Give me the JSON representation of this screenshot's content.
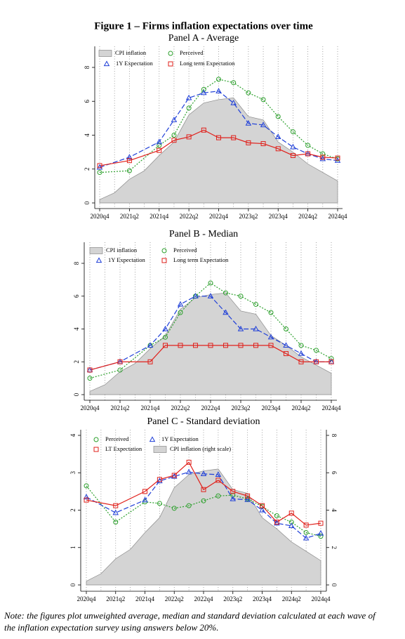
{
  "title": "Figure 1 – Firms inflation expectations over time",
  "chart_data": [
    {
      "type": "line",
      "title": "Panel A - Average",
      "xlim": [
        2020.75,
        2024.75
      ],
      "xticks": [
        {
          "value": 2020.75,
          "label": "2020q4"
        },
        {
          "value": 2021.25,
          "label": "2021q2"
        },
        {
          "value": 2021.75,
          "label": "2021q4"
        },
        {
          "value": 2022.25,
          "label": "2022q2"
        },
        {
          "value": 2022.75,
          "label": "2022q4"
        },
        {
          "value": 2023.25,
          "label": "2023q2"
        },
        {
          "value": 2023.75,
          "label": "2023q4"
        },
        {
          "value": 2024.25,
          "label": "2024q2"
        },
        {
          "value": 2024.75,
          "label": "2024q4"
        }
      ],
      "ylim": [
        0,
        8
      ],
      "yticks": [
        0,
        2,
        4,
        6,
        8
      ],
      "xgrid": true,
      "series": [
        {
          "name": "CPI inflation",
          "type": "area",
          "color": "#d4d4d4",
          "x": [
            2020.75,
            2021,
            2021.25,
            2021.5,
            2021.75,
            2022,
            2022.25,
            2022.5,
            2022.75,
            2023,
            2023.25,
            2023.5,
            2023.75,
            2024,
            2024.25,
            2024.5,
            2024.75
          ],
          "values": [
            0.2,
            0.6,
            1.4,
            1.9,
            2.8,
            3.6,
            5.2,
            5.9,
            6.1,
            6.2,
            5.1,
            4.9,
            3.6,
            3.0,
            2.3,
            1.8,
            1.3
          ]
        },
        {
          "name": "Perceived",
          "type": "line",
          "color": "#2ca02c",
          "marker": "circle",
          "dash": "dotted",
          "x": [
            2020.75,
            2021.25,
            2021.75,
            2022,
            2022.25,
            2022.5,
            2022.75,
            2023,
            2023.25,
            2023.5,
            2023.75,
            2024,
            2024.25,
            2024.5,
            2024.75
          ],
          "values": [
            1.8,
            1.9,
            3.4,
            4.0,
            5.6,
            6.7,
            7.3,
            7.1,
            6.5,
            6.1,
            5.1,
            4.2,
            3.4,
            2.9,
            2.6
          ]
        },
        {
          "name": "1Y Expectation",
          "type": "line",
          "color": "#1f3fd8",
          "marker": "triangle",
          "dash": "dashed",
          "x": [
            2020.75,
            2021.25,
            2021.75,
            2022,
            2022.25,
            2022.5,
            2022.75,
            2023,
            2023.25,
            2023.5,
            2023.75,
            2024,
            2024.25,
            2024.5,
            2024.75
          ],
          "values": [
            2.1,
            2.7,
            3.6,
            4.9,
            6.2,
            6.5,
            6.6,
            5.9,
            4.7,
            4.6,
            3.9,
            3.3,
            2.9,
            2.6,
            2.5
          ]
        },
        {
          "name": "Long term Expectation",
          "type": "line",
          "color": "#e0201b",
          "marker": "square",
          "dash": "solid",
          "x": [
            2020.75,
            2021.25,
            2021.75,
            2022,
            2022.25,
            2022.5,
            2022.75,
            2023,
            2023.25,
            2023.5,
            2023.75,
            2024,
            2024.25,
            2024.5,
            2024.75
          ],
          "values": [
            2.2,
            2.5,
            3.1,
            3.7,
            3.9,
            4.3,
            3.85,
            3.85,
            3.55,
            3.5,
            3.2,
            2.8,
            2.9,
            2.7,
            2.65
          ]
        }
      ]
    },
    {
      "type": "line",
      "title": "Panel B - Median",
      "xlim": [
        2020.75,
        2024.75
      ],
      "xticks": [
        {
          "value": 2020.75,
          "label": "2020q4"
        },
        {
          "value": 2021.25,
          "label": "2021q2"
        },
        {
          "value": 2021.75,
          "label": "2021q4"
        },
        {
          "value": 2022.25,
          "label": "2022q2"
        },
        {
          "value": 2022.75,
          "label": "2022q4"
        },
        {
          "value": 2023.25,
          "label": "2023q2"
        },
        {
          "value": 2023.75,
          "label": "2023q4"
        },
        {
          "value": 2024.25,
          "label": "2024q2"
        },
        {
          "value": 2024.75,
          "label": "2024q4"
        }
      ],
      "ylim": [
        0,
        8
      ],
      "yticks": [
        0,
        2,
        4,
        6,
        8
      ],
      "xgrid": true,
      "series": [
        {
          "name": "CPI inflation",
          "type": "area",
          "color": "#d4d4d4",
          "x": [
            2020.75,
            2021,
            2021.25,
            2021.5,
            2021.75,
            2022,
            2022.25,
            2022.5,
            2022.75,
            2023,
            2023.25,
            2023.5,
            2023.75,
            2024,
            2024.25,
            2024.5,
            2024.75
          ],
          "values": [
            0.2,
            0.6,
            1.4,
            1.9,
            2.8,
            3.6,
            5.2,
            5.9,
            6.1,
            6.2,
            5.1,
            4.9,
            3.6,
            3.0,
            2.3,
            1.8,
            1.3
          ]
        },
        {
          "name": "Perceived",
          "type": "line",
          "color": "#2ca02c",
          "marker": "circle",
          "dash": "dotted",
          "x": [
            2020.75,
            2021.25,
            2021.75,
            2022,
            2022.25,
            2022.5,
            2022.75,
            2023,
            2023.25,
            2023.5,
            2023.75,
            2024,
            2024.25,
            2024.5,
            2024.75
          ],
          "values": [
            1.0,
            1.5,
            3.0,
            3.5,
            5.0,
            6.0,
            6.8,
            6.2,
            6.0,
            5.5,
            5.0,
            4.0,
            3.0,
            2.7,
            2.2
          ]
        },
        {
          "name": "1Y Expectation",
          "type": "line",
          "color": "#1f3fd8",
          "marker": "triangle",
          "dash": "dashed",
          "x": [
            2020.75,
            2021.25,
            2021.75,
            2022,
            2022.25,
            2022.5,
            2022.75,
            2023,
            2023.25,
            2023.5,
            2023.75,
            2024,
            2024.25,
            2024.5,
            2024.75
          ],
          "values": [
            1.5,
            2.0,
            3.0,
            4.0,
            5.5,
            6.0,
            6.0,
            5.0,
            4.0,
            4.0,
            3.5,
            3.0,
            2.5,
            2.0,
            2.0
          ]
        },
        {
          "name": "Long term Expectation",
          "type": "line",
          "color": "#e0201b",
          "marker": "square",
          "dash": "solid",
          "x": [
            2020.75,
            2021.25,
            2021.75,
            2022,
            2022.25,
            2022.5,
            2022.75,
            2023,
            2023.25,
            2023.5,
            2023.75,
            2024,
            2024.25,
            2024.5,
            2024.75
          ],
          "values": [
            1.5,
            2.0,
            2.0,
            3.0,
            3.0,
            3.0,
            3.0,
            3.0,
            3.0,
            3.0,
            3.0,
            2.5,
            2.0,
            2.0,
            2.0
          ]
        }
      ]
    },
    {
      "type": "line",
      "title": "Panel C - Standard deviation",
      "xlim": [
        2020.75,
        2024.75
      ],
      "xticks": [
        {
          "value": 2020.75,
          "label": "2020q4"
        },
        {
          "value": 2021.25,
          "label": "2021q2"
        },
        {
          "value": 2021.75,
          "label": "2021q4"
        },
        {
          "value": 2022.25,
          "label": "2022q2"
        },
        {
          "value": 2022.75,
          "label": "2022q4"
        },
        {
          "value": 2023.25,
          "label": "2023q2"
        },
        {
          "value": 2023.75,
          "label": "2023q4"
        },
        {
          "value": 2024.25,
          "label": "2024q2"
        },
        {
          "value": 2024.75,
          "label": "2024q4"
        }
      ],
      "ylim": [
        0,
        4
      ],
      "yticks": [
        0,
        1,
        2,
        3,
        4
      ],
      "y2lim": [
        0,
        8
      ],
      "y2ticks": [
        0,
        2,
        4,
        6,
        8
      ],
      "xgrid": true,
      "series": [
        {
          "name": "Perceived",
          "type": "line",
          "color": "#2ca02c",
          "marker": "circle",
          "dash": "dotted",
          "x": [
            2020.75,
            2021.25,
            2021.75,
            2022,
            2022.25,
            2022.5,
            2022.75,
            2023,
            2023.25,
            2023.5,
            2023.75,
            2024,
            2024.25,
            2024.5,
            2024.75
          ],
          "values": [
            2.65,
            1.68,
            2.22,
            2.18,
            2.05,
            2.12,
            2.25,
            2.38,
            2.4,
            2.3,
            2.1,
            1.85,
            1.68,
            1.4,
            1.3
          ]
        },
        {
          "name": "1Y Expectation",
          "type": "line",
          "color": "#1f3fd8",
          "marker": "triangle",
          "dash": "dashed",
          "x": [
            2020.75,
            2021.25,
            2021.75,
            2022,
            2022.25,
            2022.5,
            2022.75,
            2023,
            2023.25,
            2023.5,
            2023.75,
            2024,
            2024.25,
            2024.5,
            2024.75
          ],
          "values": [
            2.35,
            1.93,
            2.27,
            2.78,
            2.9,
            3.02,
            2.97,
            2.95,
            2.3,
            2.28,
            2.0,
            1.65,
            1.58,
            1.25,
            1.38
          ]
        },
        {
          "name": "LT Expectation",
          "type": "line",
          "color": "#e0201b",
          "marker": "square",
          "dash": "solid",
          "x": [
            2020.75,
            2021.25,
            2021.75,
            2022,
            2022.25,
            2022.5,
            2022.75,
            2023,
            2023.25,
            2023.5,
            2023.75,
            2024,
            2024.25,
            2024.5,
            2024.75
          ],
          "values": [
            2.27,
            2.12,
            2.5,
            2.82,
            2.93,
            3.28,
            2.55,
            2.8,
            2.5,
            2.38,
            2.12,
            1.68,
            1.92,
            1.6,
            1.65
          ]
        },
        {
          "name": "CPI inflation (right scale)",
          "type": "area",
          "color": "#d4d4d4",
          "axis": "y2",
          "x": [
            2020.75,
            2021,
            2021.25,
            2021.5,
            2021.75,
            2022,
            2022.25,
            2022.5,
            2022.75,
            2023,
            2023.25,
            2023.5,
            2023.75,
            2024,
            2024.25,
            2024.5,
            2024.75
          ],
          "values": [
            0.2,
            0.6,
            1.4,
            1.9,
            2.8,
            3.6,
            5.2,
            5.9,
            6.1,
            6.2,
            5.1,
            4.9,
            3.6,
            3.0,
            2.3,
            1.8,
            1.3
          ]
        }
      ]
    }
  ],
  "note": [
    "Note: the figures plot unweighted average, median and standard deviation calculated at each wave of",
    "the inflation expectation survey using answers below 20%."
  ]
}
